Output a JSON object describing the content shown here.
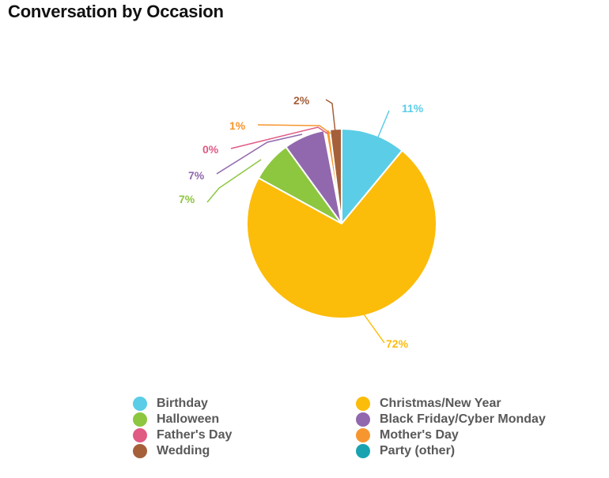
{
  "chart_data": {
    "type": "pie",
    "title": "Conversation by Occasion",
    "slices": [
      {
        "name": "Birthday",
        "value": 11,
        "label": "11%",
        "color": "#5bcde6"
      },
      {
        "name": "Christmas/New Year",
        "value": 72,
        "label": "72%",
        "color": "#fcbc0a"
      },
      {
        "name": "Halloween",
        "value": 7,
        "label": "7%",
        "color": "#8dc63f"
      },
      {
        "name": "Black Friday/Cyber Monday",
        "value": 7,
        "label": "7%",
        "color": "#9168ad"
      },
      {
        "name": "Father's Day",
        "value": 0.3,
        "label": "0%",
        "color": "#e05a84"
      },
      {
        "name": "Mother's Day",
        "value": 0.7,
        "label": "1%",
        "color": "#f7962f"
      },
      {
        "name": "Wedding",
        "value": 2,
        "label": "2%",
        "color": "#a5603a"
      },
      {
        "name": "Party (other)",
        "value": 0,
        "label": "",
        "color": "#19a3b1"
      }
    ],
    "legend": {
      "placement": "bottom",
      "columns": 2,
      "entries": [
        "Birthday",
        "Christmas/New Year",
        "Halloween",
        "Black Friday/Cyber Monday",
        "Father's Day",
        "Mother's Day",
        "Wedding",
        "Party (other)"
      ]
    }
  }
}
